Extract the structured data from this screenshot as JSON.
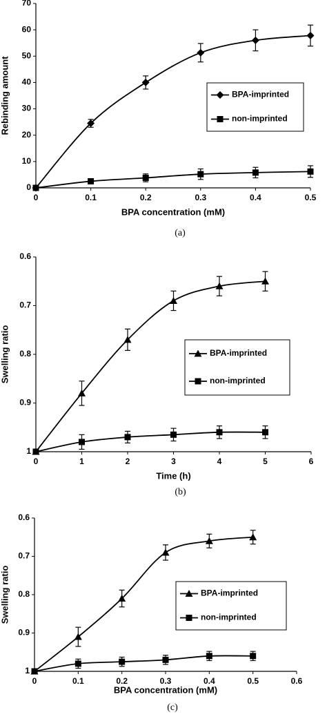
{
  "chart_data": [
    {
      "type": "line",
      "x_label": "BPA concentration (mM)",
      "y_label": "Rebinding amount",
      "caption": "(a)",
      "x": [
        0,
        0.1,
        0.2,
        0.3,
        0.4,
        0.5
      ],
      "xlim": [
        0,
        0.5
      ],
      "xticks": [
        0,
        0.1,
        0.2,
        0.3,
        0.4,
        0.5
      ],
      "ylim": [
        0,
        70
      ],
      "yticks": [
        0,
        10,
        20,
        30,
        40,
        50,
        60,
        70
      ],
      "series": [
        {
          "name": "BPA-imprinted",
          "color": "#000000",
          "marker": "diamond",
          "values": [
            0,
            24.5,
            40,
            51.3,
            56,
            57.8
          ],
          "errors": [
            0,
            1.5,
            2.5,
            3.5,
            4,
            4
          ]
        },
        {
          "name": "non-imprinted",
          "color": "#000000",
          "marker": "square",
          "values": [
            0,
            2.5,
            3.8,
            5.2,
            5.8,
            6.2
          ],
          "errors": [
            0,
            0.5,
            1.5,
            2,
            2,
            2.2
          ]
        }
      ]
    },
    {
      "type": "line",
      "x_label": "Time (h)",
      "y_label": "Swelling ratio",
      "caption": "(b)",
      "x": [
        0,
        1,
        2,
        3,
        4,
        5
      ],
      "xlim": [
        0,
        6
      ],
      "xticks": [
        0,
        1,
        2,
        3,
        4,
        5,
        6
      ],
      "ylim": [
        1,
        0.6
      ],
      "yticks": [
        0.6,
        0.7,
        0.8,
        0.9,
        1
      ],
      "series": [
        {
          "name": "BPA-imprinted",
          "color": "#000000",
          "marker": "triangle",
          "values": [
            1,
            0.88,
            0.77,
            0.69,
            0.66,
            0.65
          ],
          "errors": [
            0,
            0.025,
            0.022,
            0.02,
            0.02,
            0.02
          ]
        },
        {
          "name": "non-imprinted",
          "color": "#000000",
          "marker": "square",
          "values": [
            1,
            0.98,
            0.97,
            0.965,
            0.96,
            0.96
          ],
          "errors": [
            0,
            0.015,
            0.012,
            0.013,
            0.013,
            0.013
          ]
        }
      ]
    },
    {
      "type": "line",
      "x_label": "BPA concentration (mM)",
      "y_label": "Swelling ratio",
      "caption": "(c)",
      "x": [
        0,
        0.1,
        0.2,
        0.3,
        0.4,
        0.5
      ],
      "xlim": [
        0,
        0.6
      ],
      "xticks": [
        0,
        0.1,
        0.2,
        0.3,
        0.4,
        0.5,
        0.6
      ],
      "ylim": [
        1,
        0.6
      ],
      "yticks": [
        0.6,
        0.7,
        0.8,
        0.9,
        1
      ],
      "series": [
        {
          "name": "BPA-imprinted",
          "color": "#000000",
          "marker": "triangle",
          "values": [
            1,
            0.91,
            0.81,
            0.69,
            0.66,
            0.65
          ],
          "errors": [
            0,
            0.025,
            0.022,
            0.02,
            0.018,
            0.018
          ]
        },
        {
          "name": "non-imprinted",
          "color": "#000000",
          "marker": "square",
          "values": [
            1,
            0.98,
            0.975,
            0.97,
            0.96,
            0.96
          ],
          "errors": [
            0,
            0.012,
            0.012,
            0.012,
            0.012,
            0.012
          ]
        }
      ]
    }
  ]
}
